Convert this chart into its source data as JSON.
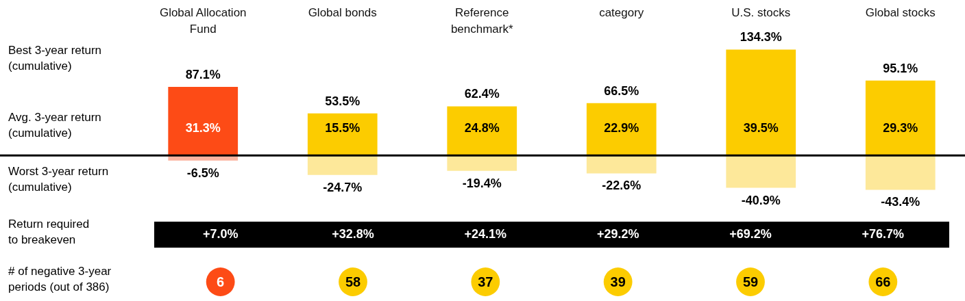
{
  "chart_data": [
    {
      "type": "bar",
      "categories": [
        "Global Allocation Fund",
        "Global bonds",
        "Reference benchmark*",
        "category",
        "U.S. stocks",
        "Global stocks"
      ],
      "tick_labels": "x",
      "stacked": true,
      "series": [
        {
          "colors": [
            "#fd4b16",
            "#fccc00",
            "#fccc00",
            "#fccc00",
            "#fccc00",
            "#fccc00"
          ],
          "values": [
            87.1,
            53.5,
            62.4,
            66.5,
            134.3,
            95.1
          ],
          "value_labels": [
            "87.1%",
            "53.5%",
            "62.4%",
            "66.5%",
            "134.3%",
            "95.1%"
          ]
        },
        {
          "colors": [
            "#fbb4a0",
            "#fde89a",
            "#fde89a",
            "#fde89a",
            "#fde89a",
            "#fde89a"
          ],
          "values": [
            -6.5,
            -24.7,
            -19.4,
            -22.6,
            -40.9,
            -43.4
          ],
          "value_labels": [
            "-6.5%",
            "-24.7%",
            "-19.4%",
            "-22.6%",
            "-40.9%",
            "-43.4%"
          ]
        }
      ],
      "annotations": [
        "Best 3-year return (cumulative)",
        "Avg. 3-year return (cumulative)",
        "Worst 3-year return (cumulative)",
        "31.3%",
        "15.5%",
        "24.8%",
        "22.9%",
        "39.5%",
        "29.3%"
      ]
    },
    {
      "type": "other",
      "title": "Return required to breakeven",
      "categories": [
        null,
        null,
        null,
        null,
        null,
        null
      ],
      "value_labels": [
        "+7.0%",
        "+32.8%",
        "+24.1%",
        "+29.2%",
        "+69.2%",
        "+76.7%"
      ]
    },
    {
      "type": "other",
      "title": "# of negative 3-year periods (out of 386)",
      "categories": [
        null,
        null,
        null,
        null,
        null,
        null
      ],
      "values": [
        6,
        58,
        37,
        39,
        59,
        66
      ],
      "colors": [
        "#fd4b16",
        "#fccc00",
        "#fccc00",
        "#fccc00",
        "#fccc00",
        "#fccc00"
      ],
      "data_labels": true
    }
  ]
}
